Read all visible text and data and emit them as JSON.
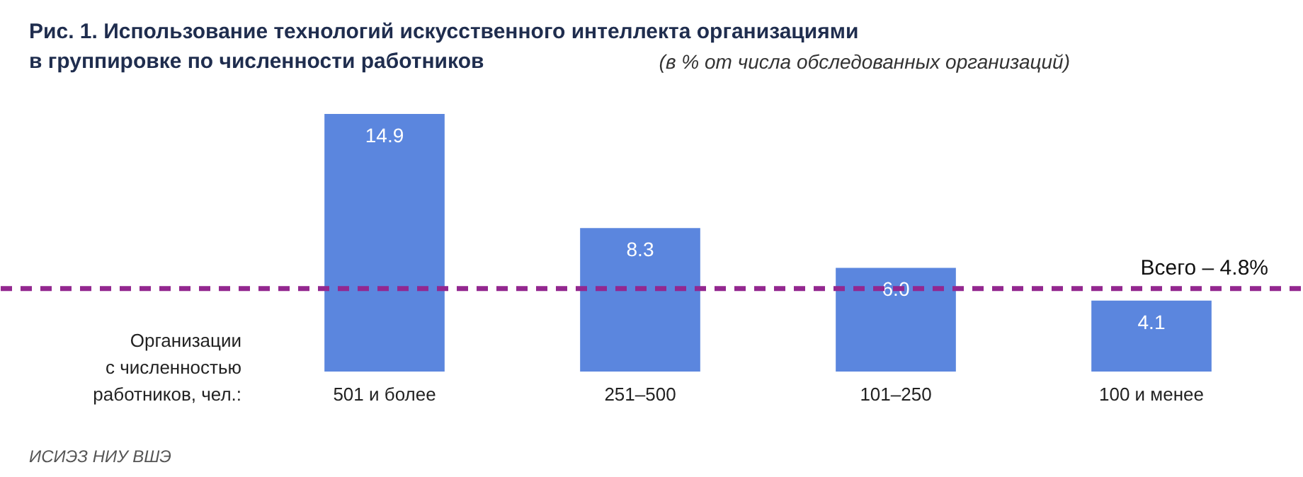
{
  "chart_data": {
    "type": "bar",
    "title": "Рис. 1.  Использование технологий искусственного интеллекта организациями\n             в группировке по численности работников",
    "subtitle": "(в % от числа обследованных организаций)",
    "xlabel": "Организации\nс численностью\nработников, чел.:",
    "categories": [
      "501 и более",
      "251–500",
      "101–250",
      "100 и менее"
    ],
    "values": [
      14.9,
      8.3,
      6.0,
      4.1
    ],
    "color": "#5b86de",
    "value_labels": [
      "14.9",
      "8.3",
      "6.0",
      "4.1"
    ],
    "grid": false,
    "ref_lines": [
      {
        "axis": "y",
        "value": 4.8,
        "label": "Всего – 4.8%",
        "color": "#93278f",
        "line_style": "dashed"
      }
    ],
    "annotations": [
      "ИСИЭЗ НИУ ВШЭ"
    ]
  }
}
